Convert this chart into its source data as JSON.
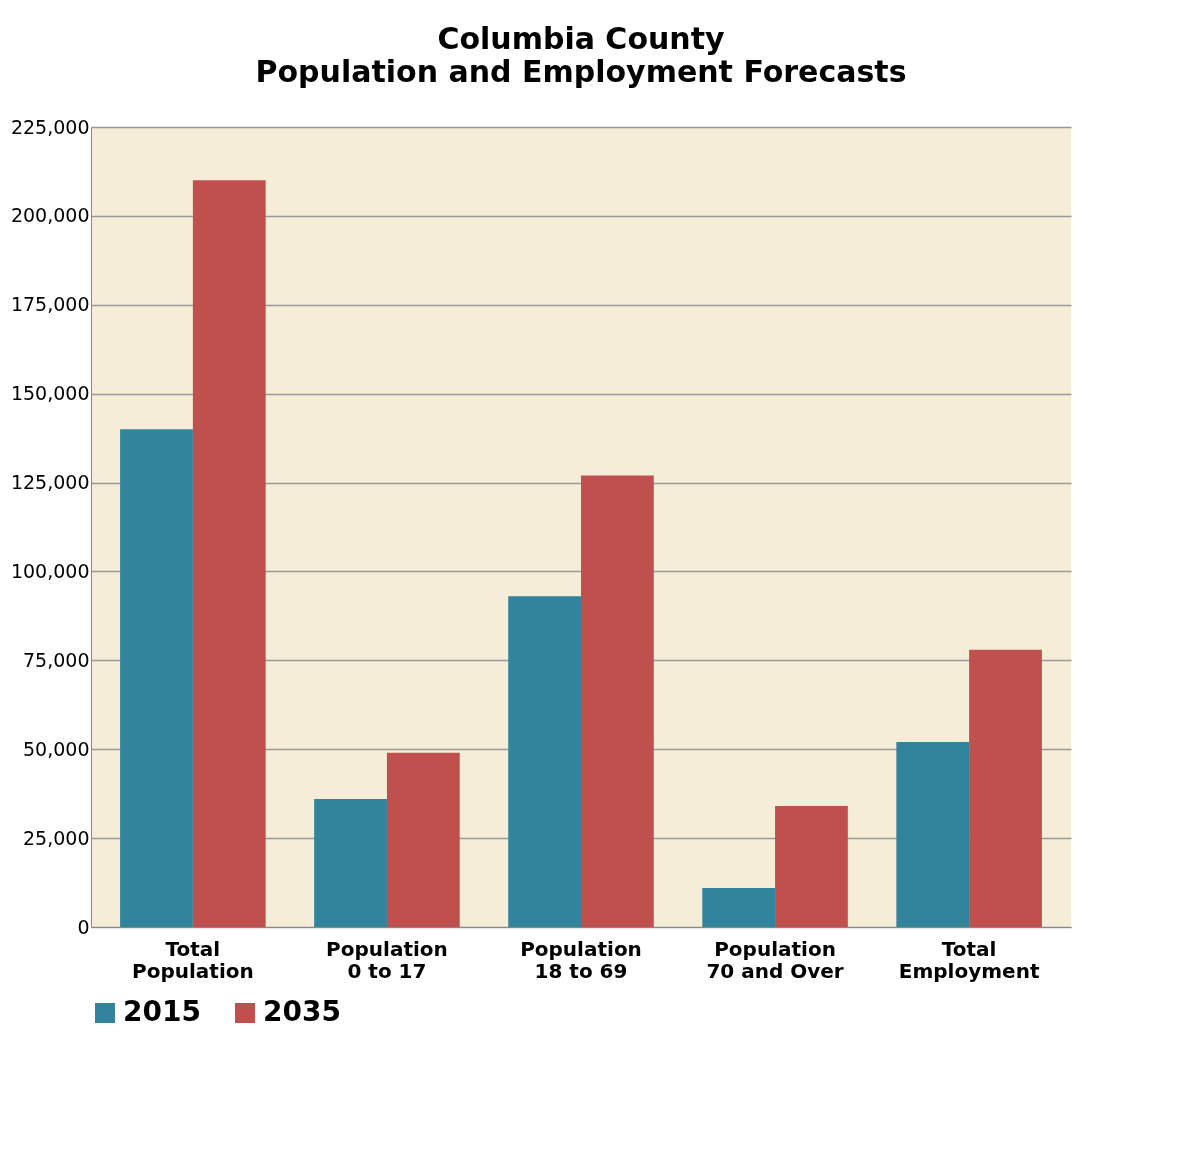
{
  "chart_data": {
    "type": "bar",
    "title": "Columbia County",
    "subtitle": "Population and Employment Forecasts",
    "categories": [
      "Total Population",
      "Population 0 to 17",
      "Population 18 to 69",
      "Population 70 and Over",
      "Total Employment"
    ],
    "series": [
      {
        "name": "2015",
        "color": "#31849b",
        "values": [
          140000,
          36000,
          93000,
          11000,
          52000
        ]
      },
      {
        "name": "2035",
        "color": "#c0504d",
        "values": [
          210000,
          49000,
          127000,
          34000,
          78000
        ]
      }
    ],
    "ylim": [
      0,
      225000
    ],
    "yticks": [
      {
        "value": 0,
        "label": "0"
      },
      {
        "value": 25000,
        "label": "25,000"
      },
      {
        "value": 50000,
        "label": "50,000"
      },
      {
        "value": 75000,
        "label": "75,000"
      },
      {
        "value": 100000,
        "label": "100,000"
      },
      {
        "value": 125000,
        "label": "125,000"
      },
      {
        "value": 150000,
        "label": "150,000"
      },
      {
        "value": 175000,
        "label": "175,000"
      },
      {
        "value": 200000,
        "label": "200,000"
      },
      {
        "value": 225000,
        "label": "225,000"
      }
    ],
    "grid": "y",
    "legend": "bottom"
  }
}
